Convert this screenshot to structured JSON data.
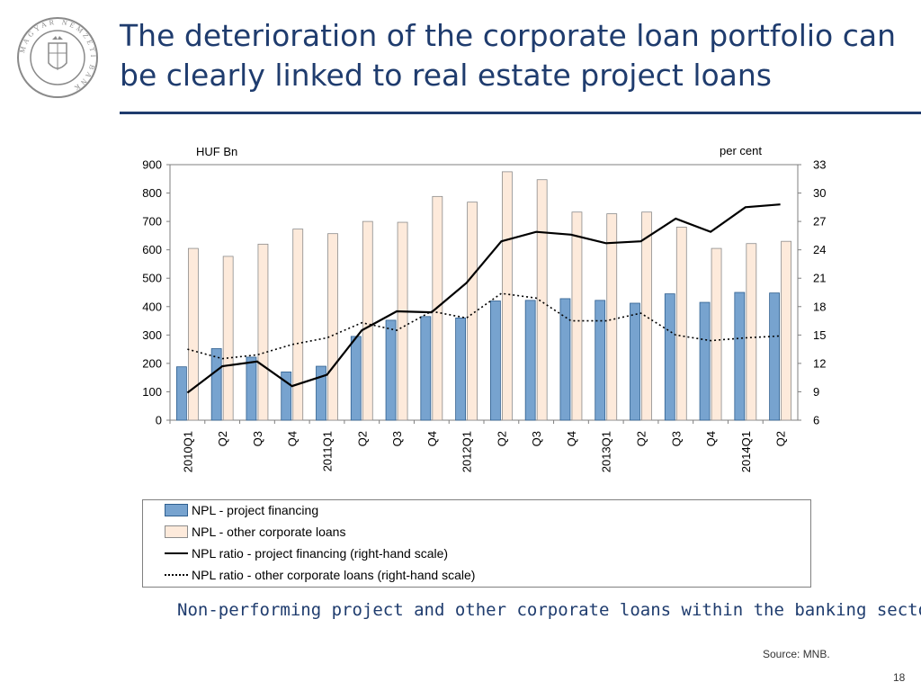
{
  "slide": {
    "title": "The deterioration of the corporate loan portfolio can be clearly linked to real estate project loans",
    "subtitle": "Non-performing project and other corporate loans within the banking sector",
    "source": "Source: MNB.",
    "page_number": "18",
    "logo_text": "MAGYAR NEMZETI BANK",
    "colors": {
      "title": "#1f3c6e",
      "bar_project": "#77a3cf",
      "bar_other": "#fdeadb"
    }
  },
  "chart_data": {
    "type": "bar",
    "categories": [
      "2010Q1",
      "Q2",
      "Q3",
      "Q4",
      "2011Q1",
      "Q2",
      "Q3",
      "Q4",
      "2012Q1",
      "Q2",
      "Q3",
      "Q4",
      "2013Q1",
      "Q2",
      "Q3",
      "Q4",
      "2014Q1",
      "Q2"
    ],
    "left_axis_label": "HUF Bn",
    "right_axis_label": "per cent",
    "ylim_left": [
      0,
      900
    ],
    "yticks_left": [
      "0",
      "100",
      "200",
      "300",
      "400",
      "500",
      "600",
      "700",
      "800",
      "900"
    ],
    "ylim_right": [
      6,
      33
    ],
    "yticks_right": [
      "6",
      "9",
      "12",
      "15",
      "18",
      "21",
      "24",
      "27",
      "30",
      "33"
    ],
    "grid": false,
    "legend_position": "bottom",
    "series": [
      {
        "name": "NPL - project financing",
        "kind": "bar",
        "axis": "left",
        "values": [
          188,
          252,
          222,
          170,
          190,
          295,
          352,
          365,
          360,
          420,
          422,
          428,
          422,
          412,
          445,
          415,
          450,
          448
        ]
      },
      {
        "name": "NPL - other corporate loans",
        "kind": "bar",
        "axis": "left",
        "values": [
          605,
          577,
          620,
          673,
          657,
          700,
          697,
          788,
          768,
          875,
          847,
          733,
          727,
          733,
          680,
          605,
          622,
          630
        ]
      },
      {
        "name": "NPL ratio - project financing (right-hand scale)",
        "kind": "line",
        "style": "solid",
        "axis": "right",
        "values": [
          8.9,
          11.7,
          12.2,
          9.6,
          10.8,
          15.5,
          17.5,
          17.4,
          20.5,
          24.9,
          25.9,
          25.6,
          24.7,
          24.9,
          27.3,
          25.9,
          28.5,
          28.8
        ]
      },
      {
        "name": "NPL ratio - other corporate loans (right-hand scale)",
        "kind": "line",
        "style": "dotted",
        "axis": "right",
        "values": [
          13.5,
          12.5,
          12.9,
          14.0,
          14.7,
          16.3,
          15.5,
          17.5,
          16.8,
          19.4,
          18.9,
          16.5,
          16.5,
          17.3,
          15.0,
          14.4,
          14.7,
          14.9
        ]
      }
    ]
  }
}
